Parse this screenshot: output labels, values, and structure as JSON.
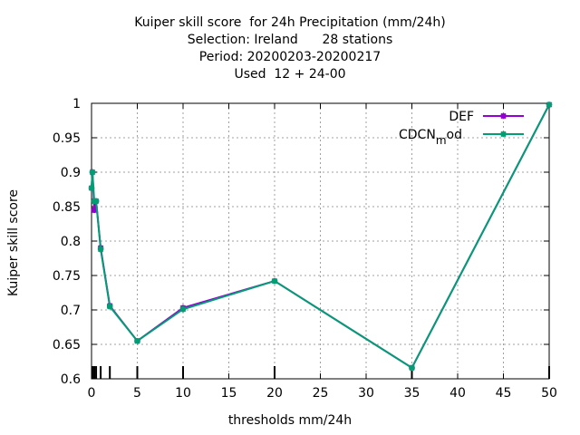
{
  "chart_data": {
    "type": "line",
    "title_lines": [
      "Kuiper skill score  for 24h Precipitation (mm/24h)",
      "Selection: Ireland      28 stations",
      "Period: 20200203-20200217",
      "Used  12 + 24-00"
    ],
    "xlabel": "thresholds mm/24h",
    "ylabel": "Kuiper skill score",
    "xlim": [
      0,
      50
    ],
    "ylim": [
      0.6,
      1.0
    ],
    "x_ticks": [
      0,
      5,
      10,
      15,
      20,
      25,
      30,
      35,
      40,
      45,
      50
    ],
    "y_ticks": [
      0.6,
      0.65,
      0.7,
      0.75,
      0.8,
      0.85,
      0.9,
      0.95,
      1.0
    ],
    "x_tick_labels": [
      "0",
      "5",
      "10",
      "15",
      "20",
      "25",
      "30",
      "35",
      "40",
      "45",
      "50"
    ],
    "y_tick_labels": [
      "0.6",
      "0.65",
      "0.7",
      "0.75",
      "0.8",
      "0.85",
      "0.9",
      "0.95",
      "1"
    ],
    "threshold_markers": [
      0.1,
      0.3,
      0.5,
      1,
      2,
      5,
      10,
      20,
      35,
      50
    ],
    "grid": true,
    "legend_position": "top-right",
    "series": [
      {
        "name": "DEF",
        "color": "#9400d3",
        "x": [
          0,
          0.1,
          0.3,
          0.5,
          1,
          2,
          5,
          10,
          20,
          35,
          50
        ],
        "y": [
          0.877,
          0.9,
          0.845,
          0.858,
          0.79,
          0.706,
          0.655,
          0.703,
          0.742,
          0.616,
          0.998
        ]
      },
      {
        "name": "CDCN",
        "name_subscript": "m",
        "name_suffix": "od",
        "color": "#009e73",
        "x": [
          0,
          0.1,
          0.3,
          0.5,
          1,
          2,
          5,
          10,
          20,
          35,
          50
        ],
        "y": [
          0.877,
          0.9,
          0.858,
          0.858,
          0.788,
          0.705,
          0.655,
          0.701,
          0.742,
          0.616,
          0.998
        ]
      }
    ]
  }
}
